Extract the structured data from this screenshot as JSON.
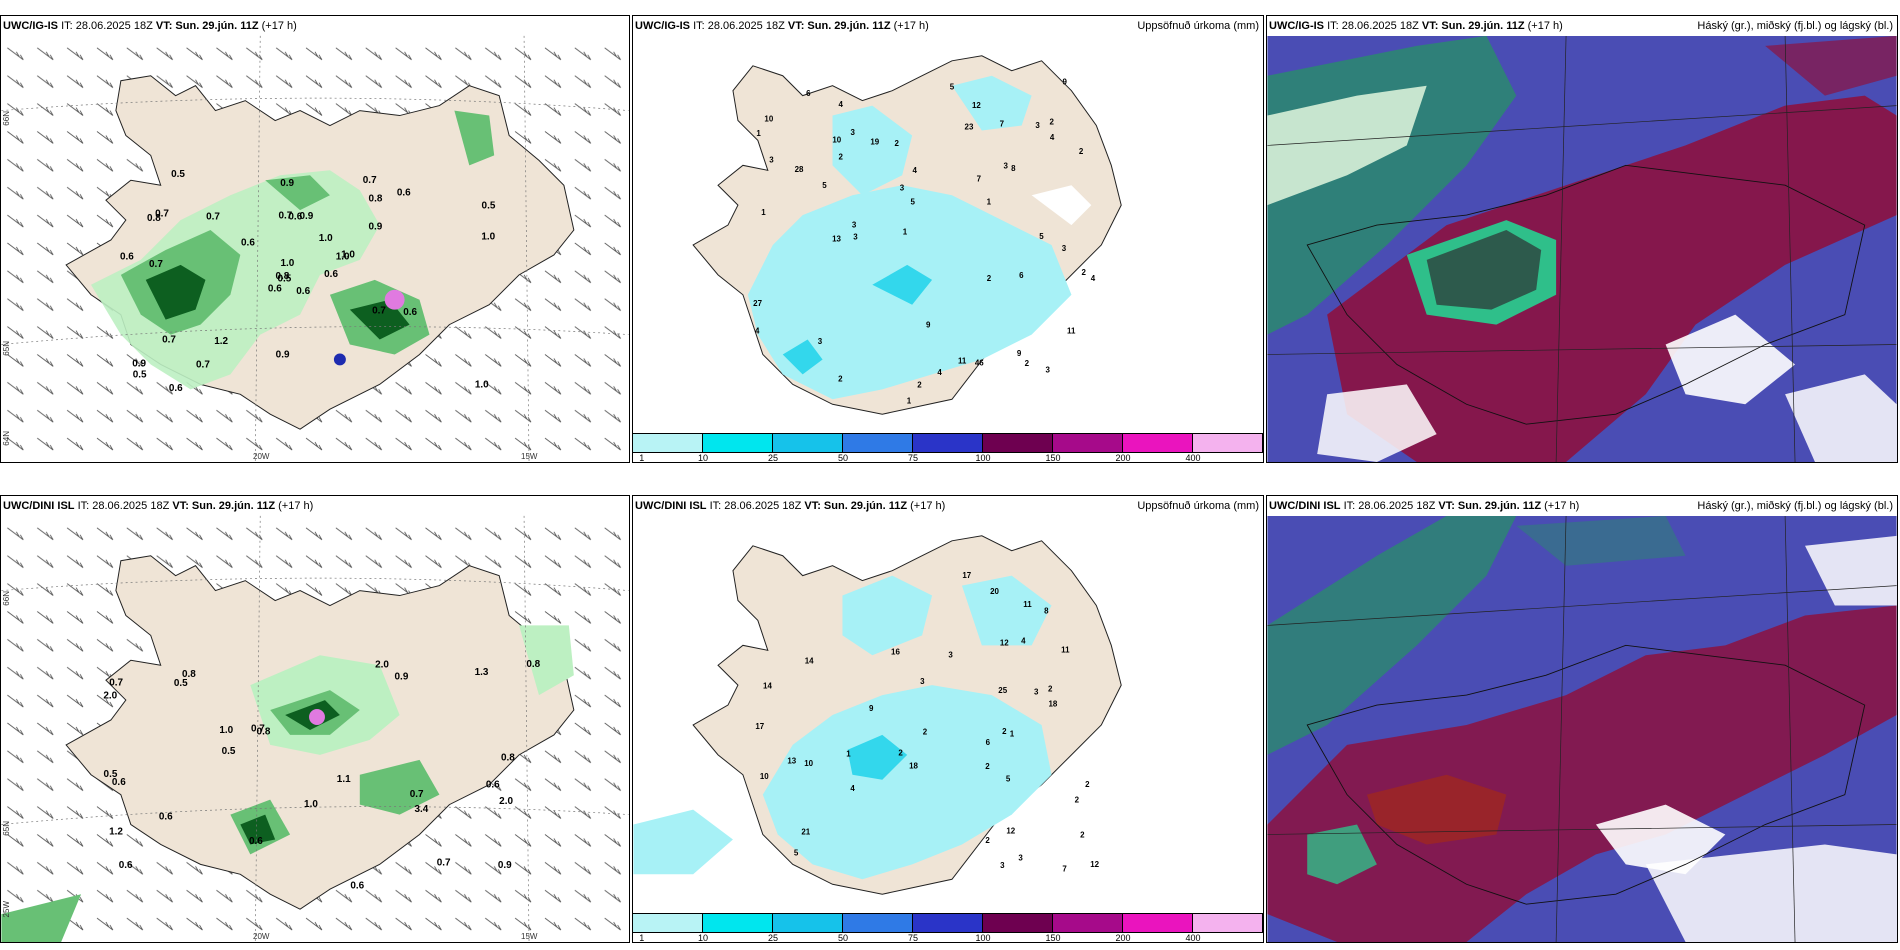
{
  "wind_panels": [
    {
      "model": "UWC/IG-IS",
      "it_label": "IT: 28.06.2025 18Z",
      "vt_label": "VT: Sun. 29.jún. 11Z",
      "lead": "(+17 h)",
      "values": [
        "0.6",
        "0.8",
        "0.5",
        "0.9",
        "1.0",
        "1.2",
        "0.7",
        "0.9",
        "0.8",
        "0.6",
        "0.5",
        "1.0",
        "0.7",
        "0.5",
        "0.6",
        "0.9",
        "0.6",
        "0.7",
        "1.0",
        "0.7",
        "0.6",
        "0.5",
        "0.7",
        "0.6",
        "1.0",
        "0.6",
        "0.7",
        "0.9",
        "0.6",
        "0.7",
        "1.0",
        "0.8",
        "0.9",
        "1.0",
        "0.7",
        "0.6"
      ]
    },
    {
      "model": "UWC/DINI ISL",
      "it_label": "IT: 28.06.2025 18Z",
      "vt_label": "VT: Sun. 29.jún. 11Z",
      "lead": "(+17 h)",
      "values": [
        "0.7",
        "0.6",
        "0.6",
        "0.8",
        "0.8",
        "0.7",
        "1.2",
        "0.9",
        "1.0",
        "0.6",
        "2.0",
        "0.5",
        "0.7",
        "0.9",
        "0.6",
        "0.8",
        "1.0",
        "1.1",
        "0.7",
        "0.6",
        "0.8",
        "1.3",
        "0.5",
        "2.0",
        "2.0",
        "0.5",
        "3.4",
        "0.6"
      ]
    }
  ],
  "precip_panels": [
    {
      "model": "UWC/IG-IS",
      "it_label": "IT: 28.06.2025 18Z",
      "vt_label": "VT: Sun. 29.jún. 11Z",
      "lead": "(+17 h)",
      "right_title": "Uppsöfnuð úrkoma (mm)",
      "values": [
        "3",
        "2",
        "1",
        "2",
        "3",
        "1",
        "2",
        "3",
        "2",
        "4",
        "2",
        "3",
        "3",
        "3",
        "1",
        "2",
        "3",
        "2",
        "3",
        "11",
        "2",
        "3",
        "5",
        "9",
        "7",
        "5",
        "4",
        "12",
        "6",
        "13",
        "27",
        "46",
        "9",
        "28",
        "10",
        "4",
        "19",
        "23",
        "5",
        "4",
        "8",
        "10",
        "3",
        "9",
        "4",
        "2",
        "1",
        "5",
        "11",
        "6",
        "4",
        "7",
        "1"
      ]
    },
    {
      "model": "UWC/DINI ISL",
      "it_label": "IT: 28.06.2025 18Z",
      "vt_label": "VT: Sun. 29.jún. 11Z",
      "lead": "(+17 h)",
      "right_title": "Uppsöfnuð úrkoma (mm)",
      "values": [
        "2",
        "2",
        "3",
        "2",
        "2",
        "4",
        "2",
        "3",
        "2",
        "3",
        "2",
        "6",
        "10",
        "5",
        "4",
        "7",
        "8",
        "13",
        "11",
        "16",
        "18",
        "17",
        "25",
        "20",
        "18",
        "21",
        "14",
        "12",
        "12",
        "10",
        "11",
        "17",
        "14",
        "12",
        "9",
        "5",
        "3",
        "2",
        "1",
        "3",
        "2",
        "1"
      ]
    }
  ],
  "cloud_panels": [
    {
      "model": "UWC/IG-IS",
      "it_label": "IT: 28.06.2025 18Z",
      "vt_label": "VT: Sun. 29.jún. 11Z",
      "lead": "(+17 h)",
      "right_title": "Háský (gr.), miðský (fj.bl.) og lágský (bl.)"
    },
    {
      "model": "UWC/DINI ISL",
      "it_label": "IT: 28.06.2025 18Z",
      "vt_label": "VT: Sun. 29.jún. 11Z",
      "lead": "(+17 h)",
      "right_title": "Háský (gr.), miðský (fj.bl.) og lágský (bl.)"
    }
  ],
  "axes": {
    "lat66": "66N",
    "lat65": "65N",
    "lat64": "64N",
    "lon20": "20W",
    "lon15": "15W",
    "lon25": "25W"
  },
  "colorbar": {
    "labels": [
      "1",
      "10",
      "25",
      "50",
      "75",
      "100",
      "150",
      "200",
      "400"
    ],
    "colors": [
      "#b8f3f5",
      "#00e6ee",
      "#16c2ea",
      "#2f7ae6",
      "#2a34c8",
      "#6e0050",
      "#a60a8a",
      "#ea14be",
      "#f4b2ee"
    ]
  },
  "colors": {
    "land": "#efe4d6",
    "coast": "#222222",
    "precip_light": "#a7f1f6",
    "precip_mid": "#33d7ec",
    "green_light": "#bdf0c2",
    "green_mid": "#68c075",
    "green_dark": "#0d5f20",
    "cloud_high": "#2a8a6e",
    "cloud_mid": "#8c1240",
    "cloud_low": "#4a4db4"
  }
}
